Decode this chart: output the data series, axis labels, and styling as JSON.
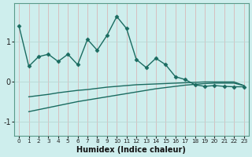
{
  "xlabel": "Humidex (Indice chaleur)",
  "bg_color": "#ceeeed",
  "line_color": "#1a6b60",
  "grid_color_h": "#b8d8d4",
  "grid_color_v": "#d8b8b8",
  "x_values": [
    0,
    1,
    2,
    3,
    4,
    5,
    6,
    7,
    8,
    9,
    10,
    11,
    12,
    13,
    14,
    15,
    16,
    17,
    18,
    19,
    20,
    21,
    22,
    23
  ],
  "line1": [
    1.38,
    0.38,
    0.62,
    0.68,
    0.5,
    0.68,
    0.42,
    1.05,
    0.78,
    1.15,
    1.62,
    1.32,
    0.55,
    0.35,
    0.58,
    0.42,
    0.12,
    0.05,
    -0.08,
    -0.12,
    -0.1,
    -0.12,
    -0.13,
    -0.13
  ],
  "line2_x": [
    1,
    2,
    3,
    4,
    5,
    6,
    7,
    8,
    9,
    10,
    11,
    12,
    13,
    14,
    15,
    16,
    17,
    18,
    19,
    20,
    21,
    22,
    23
  ],
  "line2_y": [
    -0.38,
    -0.35,
    -0.32,
    -0.28,
    -0.25,
    -0.22,
    -0.2,
    -0.17,
    -0.14,
    -0.12,
    -0.1,
    -0.08,
    -0.07,
    -0.06,
    -0.05,
    -0.04,
    -0.03,
    -0.02,
    -0.01,
    -0.01,
    -0.01,
    -0.01,
    -0.1
  ],
  "line3_x": [
    1,
    2,
    3,
    4,
    5,
    6,
    7,
    8,
    9,
    10,
    11,
    12,
    13,
    14,
    15,
    16,
    17,
    18,
    19,
    20,
    21,
    22,
    23
  ],
  "line3_y": [
    -0.75,
    -0.7,
    -0.65,
    -0.6,
    -0.55,
    -0.5,
    -0.46,
    -0.42,
    -0.38,
    -0.34,
    -0.3,
    -0.26,
    -0.22,
    -0.18,
    -0.15,
    -0.12,
    -0.09,
    -0.07,
    -0.05,
    -0.04,
    -0.04,
    -0.04,
    -0.1
  ],
  "ylim": [
    -1.35,
    1.95
  ],
  "yticks": [
    -1,
    0,
    1
  ],
  "xticks": [
    0,
    1,
    2,
    3,
    4,
    5,
    6,
    7,
    8,
    9,
    10,
    11,
    12,
    13,
    14,
    15,
    16,
    17,
    18,
    19,
    20,
    21,
    22,
    23
  ],
  "linewidth": 1.0,
  "marker_size": 2.5
}
